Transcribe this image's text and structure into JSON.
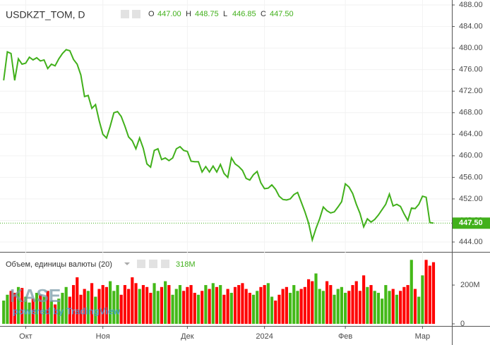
{
  "chart_data": [
    {
      "type": "line",
      "title": "USDKZT_TOM, D",
      "color": "#41b01b",
      "ohlc_labels": [
        "O",
        "H",
        "L",
        "C"
      ],
      "ohlc_values": [
        447,
        448.75,
        446.85,
        447.5
      ],
      "ohlc_value_labels": [
        "447.00",
        "448.75",
        "446.85",
        "447.50"
      ],
      "last_price": {
        "value": 447.5,
        "label": "447.50"
      },
      "xlim": [
        -1,
        122
      ],
      "ylim": [
        442.17,
        488.92
      ],
      "yticks": [
        {
          "value": 444,
          "label": "444.00"
        },
        {
          "value": 448,
          "label": "448.00"
        },
        {
          "value": 452,
          "label": "452.00"
        },
        {
          "value": 456,
          "label": "456.00"
        },
        {
          "value": 460,
          "label": "460.00"
        },
        {
          "value": 464,
          "label": "464.00"
        },
        {
          "value": 468,
          "label": "468.00"
        },
        {
          "value": 472,
          "label": "472.00"
        },
        {
          "value": 476,
          "label": "476.00"
        },
        {
          "value": 480,
          "label": "480.00"
        },
        {
          "value": 484,
          "label": "484.00"
        },
        {
          "value": 488,
          "label": "488.00"
        }
      ],
      "grid": true,
      "values": [
        474,
        479.3,
        479,
        474,
        478,
        477,
        477.2,
        478.3,
        477.8,
        478.2,
        477.6,
        477.8,
        476.2,
        477,
        476.7,
        478,
        479,
        479.7,
        479.5,
        477.9,
        477,
        475,
        471,
        471.2,
        468.8,
        469.5,
        466.5,
        464,
        463.3,
        465.5,
        468,
        468.2,
        467.3,
        465.5,
        463.5,
        462.8,
        461.3,
        463.3,
        461.4,
        458.5,
        457.9,
        461,
        461.3,
        459.3,
        459.6,
        459.1,
        459.6,
        461.3,
        461.7,
        461,
        460.8,
        459,
        458.9,
        458.9,
        457,
        458,
        457,
        458.1,
        457,
        458.4,
        456.7,
        456,
        459.6,
        458.5,
        458,
        457.3,
        455.8,
        455.5,
        456.5,
        457.1,
        455,
        453.9,
        454,
        454.6,
        453.8,
        452.5,
        451.9,
        451.8,
        452,
        452.8,
        453.2,
        451.4,
        449.6,
        447.5,
        444.4,
        446.5,
        448.3,
        450.5,
        449.8,
        449.4,
        449.6,
        450.5,
        451.5,
        454.8,
        454.2,
        453,
        451,
        449.3,
        446.8,
        448.3,
        447.7,
        448.2,
        449,
        450,
        451,
        452.9,
        450.7,
        451,
        450.6,
        449.2,
        448,
        450.3,
        450.2,
        451,
        452.5,
        452.3,
        447.6,
        447.5
      ]
    },
    {
      "type": "bar",
      "title": "Объем, единицы валюты (20)",
      "last_value": 318,
      "last_value_label": "318M",
      "up_color": "#44b918",
      "down_color": "#ff0000",
      "xlim": [
        -1,
        122
      ],
      "xticks": [
        {
          "value": 6,
          "label": "Окт"
        },
        {
          "value": 27,
          "label": "Ноя"
        },
        {
          "value": 50,
          "label": "Дек"
        },
        {
          "value": 71,
          "label": "2024"
        },
        {
          "value": 93,
          "label": "Фев"
        },
        {
          "value": 114,
          "label": "Мар"
        }
      ],
      "ylim": [
        0,
        364
      ],
      "yticks": [
        0,
        {
          "value": 200,
          "label": "200M"
        }
      ],
      "watermark": "KASE",
      "watermark_sub": "powered by TradingView",
      "values": [
        120,
        150,
        170,
        160,
        190,
        185,
        140,
        110,
        130,
        160,
        150,
        140,
        170,
        120,
        100,
        130,
        160,
        190,
        140,
        200,
        240,
        150,
        180,
        170,
        210,
        140,
        180,
        200,
        190,
        220,
        170,
        200,
        150,
        200,
        180,
        240,
        210,
        180,
        200,
        190,
        160,
        210,
        170,
        190,
        220,
        200,
        150,
        180,
        200,
        170,
        190,
        200,
        160,
        150,
        170,
        200,
        180,
        210,
        190,
        200,
        150,
        180,
        160,
        190,
        200,
        210,
        180,
        160,
        150,
        170,
        190,
        200,
        210,
        140,
        120,
        150,
        180,
        190,
        160,
        200,
        170,
        180,
        190,
        230,
        220,
        260,
        180,
        170,
        220,
        200,
        150,
        180,
        190,
        160,
        170,
        200,
        220,
        170,
        250,
        190,
        200,
        170,
        160,
        130,
        200,
        170,
        180,
        150,
        170,
        190,
        200,
        330,
        180,
        140,
        250,
        330,
        300,
        318
      ]
    }
  ]
}
